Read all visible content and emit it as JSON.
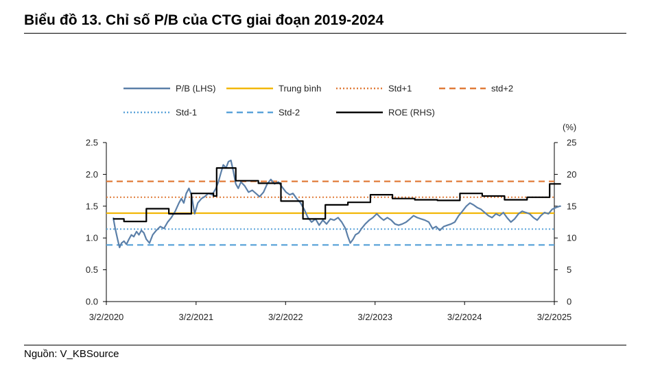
{
  "title": "Biểu đồ 13. Chỉ số P/B của CTG giai đoạn 2019-2024",
  "source": "Nguồn: V_KBSource",
  "colors": {
    "pb": "#5b7fa8",
    "mean": "#f2b705",
    "std_plus1": "#e07b39",
    "std_plus2": "#e07b39",
    "std_minus1": "#5ba3d9",
    "std_minus2": "#5ba3d9",
    "roe": "#000000"
  },
  "chart_data": {
    "type": "line",
    "title": "",
    "xlabel": "",
    "ylabel_left": "",
    "ylabel_right": "(%)",
    "x_range": [
      "3/2/2020",
      "3/2/2025"
    ],
    "x_tick_labels": [
      "3/2/2020",
      "3/2/2021",
      "3/2/2022",
      "3/2/2023",
      "3/2/2024",
      "3/2/2025"
    ],
    "ylim_left": [
      0,
      2.5
    ],
    "ylim_right": [
      0,
      25
    ],
    "y_left_ticks": [
      "0.0",
      "0.5",
      "1.0",
      "1.5",
      "2.0",
      "2.5"
    ],
    "y_right_ticks": [
      "0",
      "5",
      "10",
      "15",
      "20",
      "25"
    ],
    "grid": false,
    "legend_position": "top",
    "legend": [
      "P/B (LHS)",
      "Trung bình",
      "Std+1",
      "std+2",
      "Std-1",
      "Std-2",
      "ROE (RHS)"
    ],
    "reference_lines": [
      {
        "name": "Trung bình",
        "value": 1.39,
        "style": "solid"
      },
      {
        "name": "Std+1",
        "value": 1.64,
        "style": "dotted"
      },
      {
        "name": "std+2",
        "value": 1.89,
        "style": "dashed"
      },
      {
        "name": "Std-1",
        "value": 1.14,
        "style": "dotted"
      },
      {
        "name": "Std-2",
        "value": 0.89,
        "style": "dashed"
      }
    ],
    "series": [
      {
        "name": "P/B (LHS)",
        "axis": "left",
        "points": [
          [
            "2020-03-02",
            1.32
          ],
          [
            "2020-03-10",
            1.15
          ],
          [
            "2020-03-20",
            0.98
          ],
          [
            "2020-03-28",
            0.85
          ],
          [
            "2020-04-05",
            0.92
          ],
          [
            "2020-04-15",
            0.95
          ],
          [
            "2020-04-25",
            0.9
          ],
          [
            "2020-05-05",
            0.98
          ],
          [
            "2020-05-15",
            1.05
          ],
          [
            "2020-05-25",
            1.02
          ],
          [
            "2020-06-05",
            1.1
          ],
          [
            "2020-06-15",
            1.05
          ],
          [
            "2020-06-25",
            1.12
          ],
          [
            "2020-07-05",
            1.08
          ],
          [
            "2020-07-15",
            0.98
          ],
          [
            "2020-07-28",
            0.92
          ],
          [
            "2020-08-10",
            1.05
          ],
          [
            "2020-08-25",
            1.12
          ],
          [
            "2020-09-10",
            1.18
          ],
          [
            "2020-09-25",
            1.15
          ],
          [
            "2020-10-10",
            1.25
          ],
          [
            "2020-10-25",
            1.32
          ],
          [
            "2020-11-10",
            1.42
          ],
          [
            "2020-11-25",
            1.55
          ],
          [
            "2020-12-05",
            1.62
          ],
          [
            "2020-12-15",
            1.55
          ],
          [
            "2020-12-25",
            1.7
          ],
          [
            "2021-01-05",
            1.78
          ],
          [
            "2021-01-15",
            1.68
          ],
          [
            "2021-01-28",
            1.38
          ],
          [
            "2021-02-10",
            1.55
          ],
          [
            "2021-02-25",
            1.62
          ],
          [
            "2021-03-10",
            1.65
          ],
          [
            "2021-03-25",
            1.7
          ],
          [
            "2021-04-10",
            1.68
          ],
          [
            "2021-04-25",
            1.78
          ],
          [
            "2021-05-05",
            1.88
          ],
          [
            "2021-05-15",
            2.02
          ],
          [
            "2021-05-25",
            2.15
          ],
          [
            "2021-06-05",
            2.1
          ],
          [
            "2021-06-15",
            2.2
          ],
          [
            "2021-06-25",
            2.22
          ],
          [
            "2021-07-05",
            2.05
          ],
          [
            "2021-07-15",
            1.85
          ],
          [
            "2021-07-25",
            1.78
          ],
          [
            "2021-08-05",
            1.88
          ],
          [
            "2021-08-20",
            1.82
          ],
          [
            "2021-09-05",
            1.72
          ],
          [
            "2021-09-20",
            1.75
          ],
          [
            "2021-10-05",
            1.7
          ],
          [
            "2021-10-20",
            1.65
          ],
          [
            "2021-11-05",
            1.72
          ],
          [
            "2021-11-20",
            1.85
          ],
          [
            "2021-12-05",
            1.92
          ],
          [
            "2021-12-20",
            1.85
          ],
          [
            "2022-01-05",
            1.88
          ],
          [
            "2022-01-20",
            1.8
          ],
          [
            "2022-02-05",
            1.72
          ],
          [
            "2022-02-20",
            1.68
          ],
          [
            "2022-03-05",
            1.7
          ],
          [
            "2022-03-20",
            1.62
          ],
          [
            "2022-04-05",
            1.55
          ],
          [
            "2022-04-20",
            1.45
          ],
          [
            "2022-05-05",
            1.32
          ],
          [
            "2022-05-20",
            1.25
          ],
          [
            "2022-06-05",
            1.3
          ],
          [
            "2022-06-20",
            1.2
          ],
          [
            "2022-07-05",
            1.28
          ],
          [
            "2022-07-20",
            1.22
          ],
          [
            "2022-08-05",
            1.3
          ],
          [
            "2022-08-20",
            1.28
          ],
          [
            "2022-09-05",
            1.32
          ],
          [
            "2022-09-20",
            1.25
          ],
          [
            "2022-10-05",
            1.15
          ],
          [
            "2022-10-15",
            1.02
          ],
          [
            "2022-10-25",
            0.92
          ],
          [
            "2022-11-05",
            0.98
          ],
          [
            "2022-11-15",
            1.05
          ],
          [
            "2022-11-28",
            1.08
          ],
          [
            "2022-12-10",
            1.15
          ],
          [
            "2022-12-25",
            1.22
          ],
          [
            "2023-01-10",
            1.28
          ],
          [
            "2023-01-25",
            1.32
          ],
          [
            "2023-02-10",
            1.38
          ],
          [
            "2023-02-25",
            1.32
          ],
          [
            "2023-03-10",
            1.28
          ],
          [
            "2023-03-25",
            1.32
          ],
          [
            "2023-04-10",
            1.28
          ],
          [
            "2023-04-25",
            1.22
          ],
          [
            "2023-05-10",
            1.2
          ],
          [
            "2023-05-25",
            1.22
          ],
          [
            "2023-06-10",
            1.25
          ],
          [
            "2023-06-25",
            1.3
          ],
          [
            "2023-07-10",
            1.35
          ],
          [
            "2023-07-25",
            1.32
          ],
          [
            "2023-08-10",
            1.3
          ],
          [
            "2023-08-25",
            1.28
          ],
          [
            "2023-09-10",
            1.25
          ],
          [
            "2023-09-25",
            1.15
          ],
          [
            "2023-10-10",
            1.18
          ],
          [
            "2023-10-25",
            1.12
          ],
          [
            "2023-11-10",
            1.18
          ],
          [
            "2023-11-25",
            1.2
          ],
          [
            "2023-12-10",
            1.22
          ],
          [
            "2023-12-25",
            1.25
          ],
          [
            "2024-01-10",
            1.35
          ],
          [
            "2024-01-25",
            1.42
          ],
          [
            "2024-02-10",
            1.5
          ],
          [
            "2024-02-25",
            1.55
          ],
          [
            "2024-03-10",
            1.52
          ],
          [
            "2024-03-25",
            1.48
          ],
          [
            "2024-04-10",
            1.45
          ],
          [
            "2024-04-25",
            1.4
          ],
          [
            "2024-05-10",
            1.35
          ],
          [
            "2024-05-25",
            1.32
          ],
          [
            "2024-06-10",
            1.38
          ],
          [
            "2024-06-25",
            1.35
          ],
          [
            "2024-07-10",
            1.4
          ],
          [
            "2024-07-25",
            1.32
          ],
          [
            "2024-08-10",
            1.25
          ],
          [
            "2024-08-25",
            1.3
          ],
          [
            "2024-09-10",
            1.38
          ],
          [
            "2024-09-25",
            1.42
          ],
          [
            "2024-10-10",
            1.4
          ],
          [
            "2024-10-25",
            1.38
          ],
          [
            "2024-11-10",
            1.32
          ],
          [
            "2024-11-25",
            1.28
          ],
          [
            "2024-12-10",
            1.35
          ],
          [
            "2024-12-25",
            1.4
          ],
          [
            "2025-01-10",
            1.38
          ],
          [
            "2025-01-25",
            1.45
          ],
          [
            "2025-02-10",
            1.48
          ],
          [
            "2025-02-25",
            1.5
          ],
          [
            "2025-03-02",
            1.5
          ]
        ]
      },
      {
        "name": "ROE (RHS)",
        "axis": "right",
        "step": true,
        "points": [
          [
            "2020-03-02",
            13.0
          ],
          [
            "2020-04-15",
            12.6
          ],
          [
            "2020-07-15",
            14.6
          ],
          [
            "2020-10-15",
            13.8
          ],
          [
            "2021-01-15",
            17.0
          ],
          [
            "2021-04-15",
            16.6
          ],
          [
            "2021-04-28",
            21.0
          ],
          [
            "2021-07-15",
            19.0
          ],
          [
            "2021-10-15",
            18.6
          ],
          [
            "2022-01-15",
            15.8
          ],
          [
            "2022-04-15",
            13.0
          ],
          [
            "2022-07-15",
            15.2
          ],
          [
            "2022-10-15",
            15.6
          ],
          [
            "2023-01-15",
            16.8
          ],
          [
            "2023-04-15",
            16.2
          ],
          [
            "2023-07-15",
            16.0
          ],
          [
            "2023-10-15",
            15.9
          ],
          [
            "2024-01-15",
            17.0
          ],
          [
            "2024-04-15",
            16.6
          ],
          [
            "2024-07-15",
            16.0
          ],
          [
            "2024-10-15",
            16.4
          ],
          [
            "2025-01-15",
            18.5
          ],
          [
            "2025-03-02",
            18.5
          ]
        ]
      }
    ]
  }
}
